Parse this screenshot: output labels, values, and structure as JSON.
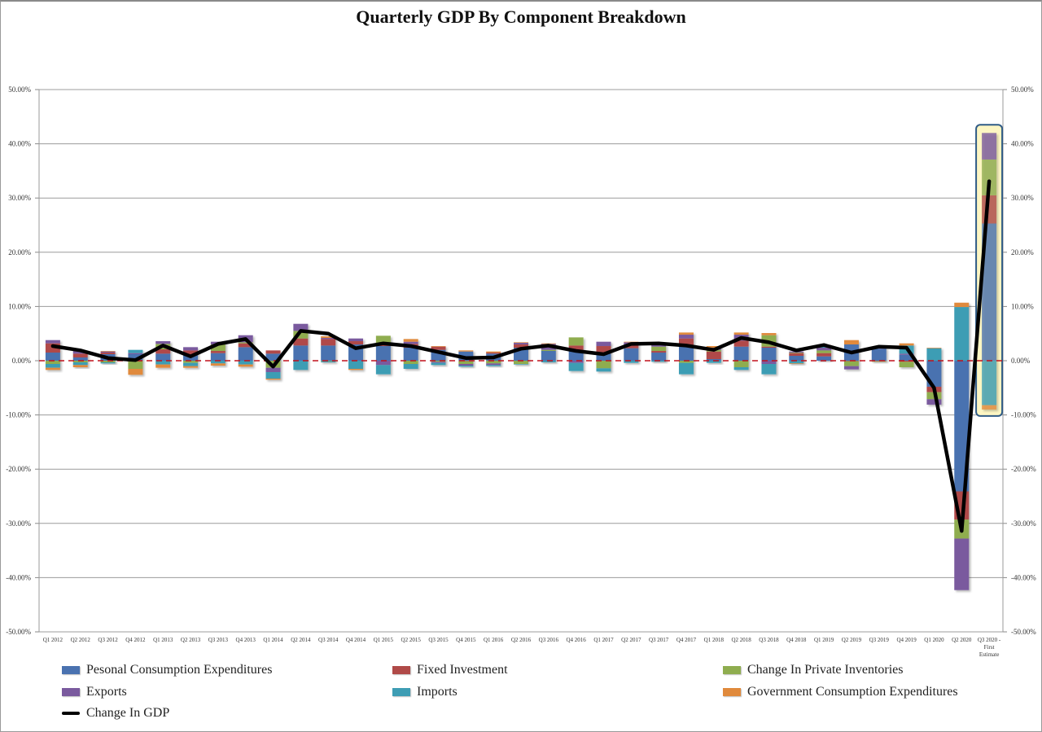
{
  "chart_data": {
    "type": "bar",
    "subtype": "stacked-bar-with-line",
    "title": "Quarterly GDP By Component Breakdown",
    "xlabel": "",
    "ylabel": "",
    "ylim": [
      -50,
      50
    ],
    "yticks": [
      50,
      40,
      30,
      20,
      10,
      0,
      -10,
      -20,
      -30,
      -40,
      -50
    ],
    "ytick_labels": [
      "50.00%",
      "40.00%",
      "30.00%",
      "20.00%",
      "10.00%",
      "0.00%",
      "-10.00%",
      "-20.00%",
      "-30.00%",
      "-40.00%",
      "-50.00%"
    ],
    "grid": true,
    "secondary_y_axis": true,
    "zero_line": "red-dashed",
    "legend_position": "bottom",
    "highlight": {
      "category": "Q3 2020 - First Estimate",
      "style": "yellow-box"
    },
    "categories": [
      "Q1 2012",
      "Q2 2012",
      "Q3 2012",
      "Q4 2012",
      "Q1 2013",
      "Q2 2013",
      "Q3 2013",
      "Q4 2013",
      "Q1 2014",
      "Q2 2014",
      "Q3 2014",
      "Q4 2014",
      "Q1 2015",
      "Q2 2015",
      "Q3 2015",
      "Q4 2015",
      "Q1 2016",
      "Q2 2016",
      "Q3 2016",
      "Q4 2016",
      "Q1 2017",
      "Q2 2017",
      "Q3 2017",
      "Q4 2017",
      "Q1 2018",
      "Q2 2018",
      "Q3 2018",
      "Q4 2018",
      "Q1 2019",
      "Q2 2019",
      "Q3 2019",
      "Q4 2019",
      "Q1 2020",
      "Q2 2020",
      "Q3 2020 - First Estimate"
    ],
    "category_label_lines": {
      "Q3 2020 - First Estimate": [
        "Q3 2020 -",
        "First",
        "Estimate"
      ]
    },
    "series": [
      {
        "name": "Pesonal Consumption Expenditures",
        "color": "#4a72b0",
        "values": [
          1.5,
          0.6,
          1.2,
          1.2,
          1.3,
          1.2,
          1.4,
          2.5,
          1.3,
          2.8,
          2.8,
          3.0,
          2.7,
          2.4,
          2.0,
          1.7,
          1.3,
          2.4,
          1.8,
          2.0,
          1.3,
          2.3,
          1.5,
          2.6,
          0.3,
          2.6,
          2.4,
          0.9,
          0.8,
          3.0,
          2.2,
          1.1,
          -4.8,
          -24.1,
          25.3
        ]
      },
      {
        "name": "Fixed Investment",
        "color": "#b04a48",
        "values": [
          1.7,
          0.7,
          0.3,
          0.0,
          0.8,
          0.7,
          0.4,
          0.7,
          0.6,
          1.3,
          1.2,
          0.6,
          0.5,
          0.7,
          0.6,
          -0.1,
          0.2,
          0.6,
          0.0,
          0.8,
          1.4,
          0.6,
          0.3,
          1.5,
          1.4,
          1.1,
          0.2,
          0.5,
          0.6,
          -0.1,
          -0.1,
          -0.2,
          -1.0,
          -5.2,
          5.2
        ]
      },
      {
        "name": "Change In Private Inventories",
        "color": "#8fad4f",
        "values": [
          -0.6,
          -0.3,
          -0.3,
          -1.5,
          1.0,
          -0.4,
          1.2,
          0.2,
          -1.3,
          1.4,
          -0.1,
          0.0,
          1.4,
          -0.6,
          -0.2,
          -0.5,
          -0.5,
          -0.6,
          0.2,
          1.5,
          -1.4,
          0.1,
          0.8,
          -0.4,
          0.3,
          -1.2,
          2.1,
          0.1,
          0.5,
          -0.9,
          -0.1,
          -1.0,
          -1.3,
          -3.5,
          6.6
        ]
      },
      {
        "name": "Exports",
        "color": "#7a5a9e",
        "values": [
          0.6,
          0.5,
          0.2,
          0.2,
          0.5,
          0.6,
          0.5,
          1.3,
          -0.8,
          1.3,
          0.2,
          0.5,
          -0.8,
          0.4,
          -0.2,
          -0.3,
          -0.3,
          0.3,
          1.1,
          -0.4,
          0.8,
          0.4,
          0.3,
          0.7,
          0.4,
          1.1,
          -0.6,
          0.2,
          0.5,
          -0.6,
          0.1,
          0.2,
          -1.0,
          -9.5,
          4.9
        ]
      },
      {
        "name": "Imports",
        "color": "#3e9db4",
        "values": [
          -0.7,
          -0.5,
          -0.2,
          0.6,
          -0.7,
          -0.6,
          -0.5,
          -0.7,
          -1.2,
          -1.7,
          -0.2,
          -1.5,
          -1.7,
          -0.9,
          -0.4,
          -0.2,
          -0.2,
          -0.1,
          -0.3,
          -1.5,
          -0.6,
          -0.4,
          -0.2,
          -2.1,
          -0.4,
          -0.5,
          -1.9,
          -0.5,
          0.2,
          0.0,
          0.0,
          1.5,
          2.3,
          9.9,
          -8.2
        ]
      },
      {
        "name": "Government Consumption Expenditures",
        "color": "#e08a3c",
        "values": [
          -0.4,
          -0.4,
          0.1,
          -1.1,
          -0.6,
          -0.3,
          -0.4,
          -0.4,
          -0.2,
          0.0,
          0.3,
          -0.2,
          0.0,
          0.5,
          0.1,
          0.2,
          0.2,
          0.1,
          0.1,
          0.0,
          0.0,
          0.1,
          0.1,
          0.4,
          0.3,
          0.4,
          0.4,
          -0.1,
          0.3,
          0.8,
          0.3,
          0.4,
          0.1,
          0.8,
          -0.8
        ]
      },
      {
        "name": "Change In GDP",
        "color": "#000000",
        "type": "line",
        "values": [
          2.7,
          1.9,
          0.5,
          0.1,
          2.8,
          0.8,
          3.1,
          4.0,
          -1.1,
          5.5,
          5.0,
          2.3,
          3.2,
          2.7,
          1.6,
          0.5,
          0.6,
          2.2,
          2.8,
          1.8,
          1.2,
          3.1,
          3.2,
          2.8,
          2.0,
          4.2,
          3.4,
          1.9,
          2.9,
          1.5,
          2.6,
          2.4,
          -5.0,
          -31.4,
          33.1
        ]
      }
    ]
  },
  "legend": {
    "items": [
      {
        "label": "Pesonal Consumption Expenditures",
        "color": "#4a72b0",
        "kind": "swatch"
      },
      {
        "label": "Fixed Investment",
        "color": "#b04a48",
        "kind": "swatch"
      },
      {
        "label": "Change In Private Inventories",
        "color": "#8fad4f",
        "kind": "swatch"
      },
      {
        "label": "Exports",
        "color": "#7a5a9e",
        "kind": "swatch"
      },
      {
        "label": "Imports",
        "color": "#3e9db4",
        "kind": "swatch"
      },
      {
        "label": "Government Consumption Expenditures",
        "color": "#e08a3c",
        "kind": "swatch"
      },
      {
        "label": "Change In GDP",
        "color": "#000000",
        "kind": "line"
      }
    ]
  }
}
